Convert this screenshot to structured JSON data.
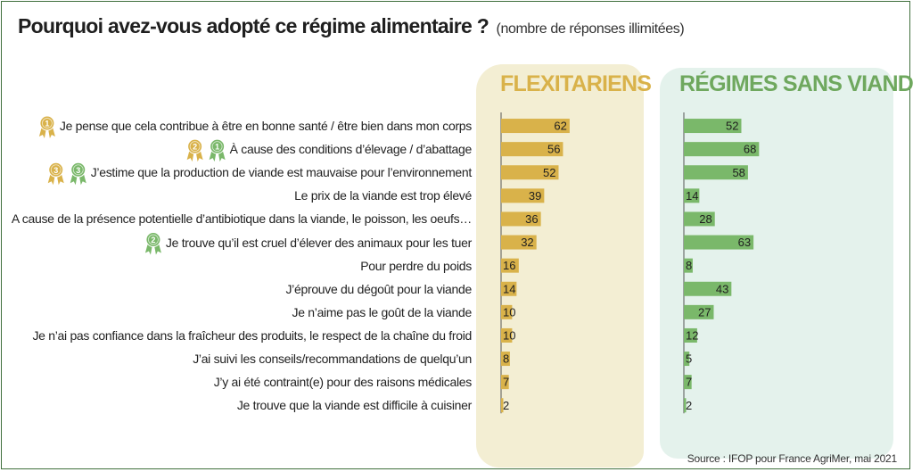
{
  "title": "Pourquoi avez-vous adopté ce régime alimentaire ?",
  "subtitle": "(nombre de réponses illimitées)",
  "source": "Source : IFOP pour France AgriMer, mai 2021",
  "colors": {
    "flexitariens": "#d9b24a",
    "sans_viande": "#7ab86a",
    "flex_panel": "#f3eed3",
    "veg_panel": "#e4f2ec",
    "border": "#3f6f3c"
  },
  "badges": [
    {
      "row": 0,
      "items": [
        {
          "rank": "1",
          "group": "flexitariens"
        }
      ]
    },
    {
      "row": 1,
      "items": [
        {
          "rank": "2",
          "group": "flexitariens"
        },
        {
          "rank": "1",
          "group": "sans_viande"
        }
      ]
    },
    {
      "row": 2,
      "items": [
        {
          "rank": "3",
          "group": "flexitariens"
        },
        {
          "rank": "3",
          "group": "sans_viande"
        }
      ]
    },
    {
      "row": 5,
      "items": [
        {
          "rank": "2",
          "group": "sans_viande"
        }
      ]
    }
  ],
  "chart_data": {
    "type": "bar",
    "orientation": "horizontal",
    "categories": [
      "Je pense que cela contribue à être en bonne santé / être bien dans mon corps",
      "À cause des conditions d’élevage / d’abattage",
      "J’estime que la production de viande est mauvaise pour l’environnement",
      "Le prix de la viande est trop élevé",
      "A cause de la présence potentielle d’antibiotique dans la viande, le poisson, les oeufs…",
      "Je trouve qu’il est cruel d’élever des animaux pour les tuer",
      "Pour perdre du poids",
      "J’éprouve du dégoût pour la viande",
      "Je n’aime pas le goût de la viande",
      "Je n’ai pas confiance dans la fraîcheur des produits, le respect de la chaîne du froid",
      "J’ai suivi les conseils/recommandations de quelqu’un",
      "J’y ai été contraint(e) pour des raisons médicales",
      "Je trouve que la viande est difficile à cuisiner"
    ],
    "series": [
      {
        "name": "FLEXITARIENS",
        "values": [
          62,
          56,
          52,
          39,
          36,
          32,
          16,
          14,
          10,
          10,
          8,
          7,
          2
        ]
      },
      {
        "name": "RÉGIMES SANS VIANDE",
        "values": [
          52,
          68,
          58,
          14,
          28,
          63,
          8,
          43,
          27,
          12,
          5,
          7,
          2
        ]
      }
    ],
    "data_labels": true,
    "grid": false
  }
}
